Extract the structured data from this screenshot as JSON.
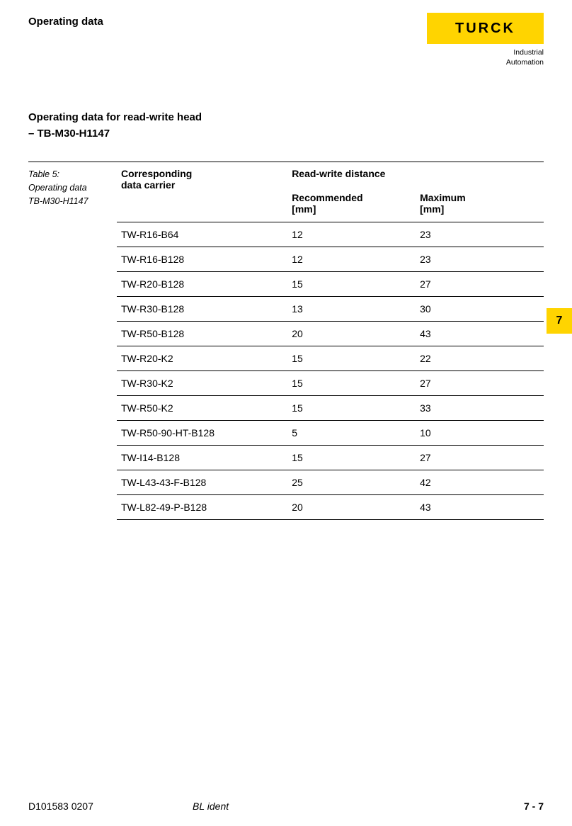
{
  "header": {
    "title": "Operating data",
    "logo_text": "TURCK",
    "logo_sub1": "Industrial",
    "logo_sub2": "Automation",
    "logo_bg_color": "#ffd400"
  },
  "section": {
    "title_line1": "Operating data for read-write head",
    "title_line2": "– TB-M30-H1147"
  },
  "table_caption": {
    "line1": "Table 5:",
    "line2": "Operating data",
    "line3": "TB-M30-H1147"
  },
  "table": {
    "header_col1": "Corresponding",
    "header_col1_line2": "data carrier",
    "header_span": "Read-write distance",
    "header_col2": "Recommended",
    "header_col2_unit": "[mm]",
    "header_col3": "Maximum",
    "header_col3_unit": "[mm]",
    "rows": [
      {
        "carrier": "TW-R16-B64",
        "rec": "12",
        "max": "23"
      },
      {
        "carrier": "TW-R16-B128",
        "rec": "12",
        "max": "23"
      },
      {
        "carrier": "TW-R20-B128",
        "rec": "15",
        "max": "27"
      },
      {
        "carrier": "TW-R30-B128",
        "rec": "13",
        "max": "30"
      },
      {
        "carrier": "TW-R50-B128",
        "rec": "20",
        "max": "43"
      },
      {
        "carrier": "TW-R20-K2",
        "rec": "15",
        "max": "22"
      },
      {
        "carrier": "TW-R30-K2",
        "rec": "15",
        "max": "27"
      },
      {
        "carrier": "TW-R50-K2",
        "rec": "15",
        "max": "33"
      },
      {
        "carrier": "TW-R50-90-HT-B128",
        "rec": "5",
        "max": "10"
      },
      {
        "carrier": "TW-I14-B128",
        "rec": "15",
        "max": "27"
      },
      {
        "carrier": "TW-L43-43-F-B128",
        "rec": "25",
        "max": "42"
      },
      {
        "carrier": "TW-L82-49-P-B128",
        "rec": "20",
        "max": "43"
      }
    ]
  },
  "side_tab": {
    "number": "7",
    "bg_color": "#ffd400"
  },
  "footer": {
    "left": "D101583  0207",
    "center": "BL ident",
    "right": "7 - 7"
  }
}
